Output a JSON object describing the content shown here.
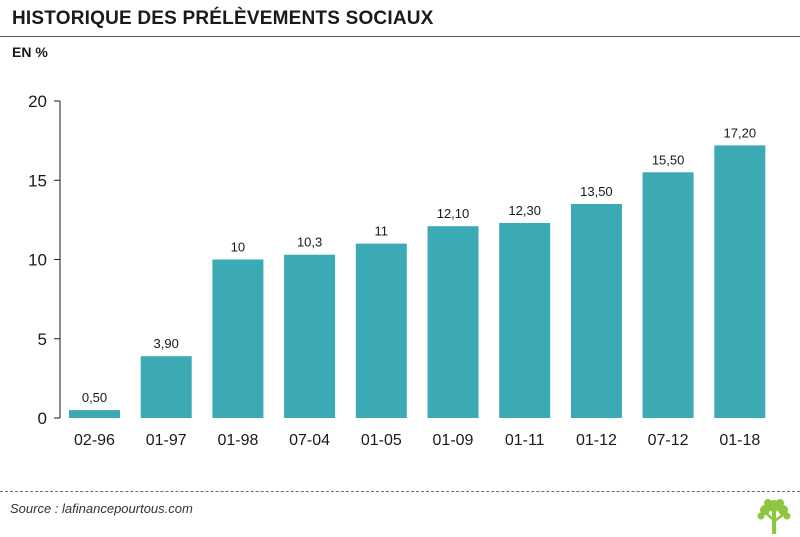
{
  "header": {
    "title": "HISTORIQUE DES PRÉLÈVEMENTS SOCIAUX",
    "unit_label": "EN %"
  },
  "footer": {
    "source": "Source : lafinancepourtous.com",
    "logo_icon": "tree-logo-icon"
  },
  "colors": {
    "bar": "#3BAAB4",
    "logo": "#8DC63F",
    "axis": "#1a1a1a"
  },
  "chart_data": {
    "type": "bar",
    "categories": [
      "02-96",
      "01-97",
      "01-98",
      "07-04",
      "01-05",
      "01-09",
      "01-11",
      "01-12",
      "07-12",
      "01-18"
    ],
    "values": [
      0.5,
      3.9,
      10,
      10.3,
      11,
      12.1,
      12.3,
      13.5,
      15.5,
      17.2
    ],
    "data_labels": [
      "0,50",
      "3,90",
      "10",
      "10,3",
      "11",
      "12,10",
      "12,30",
      "13,50",
      "15,50",
      "17,20"
    ],
    "title": "HISTORIQUE DES PRÉLÈVEMENTS SOCIAUX",
    "xlabel": "",
    "ylabel": "EN %",
    "ylim": [
      0,
      20
    ],
    "yticks": [
      0,
      5,
      10,
      15,
      20
    ],
    "grid": false,
    "legend": "none"
  }
}
